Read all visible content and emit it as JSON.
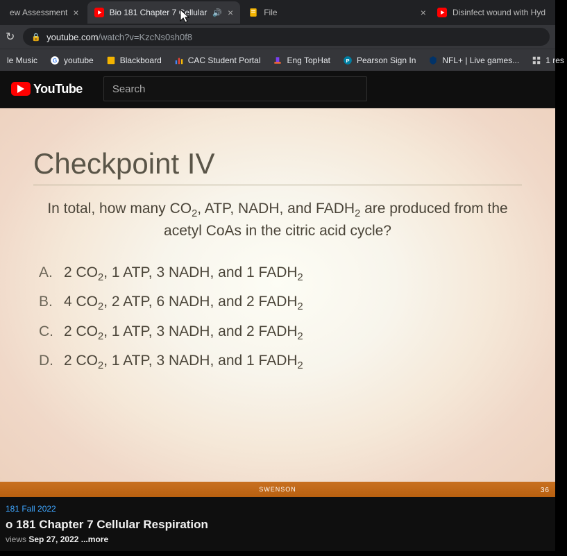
{
  "tabs": [
    {
      "title": "ew Assessment",
      "active": false,
      "icon": null
    },
    {
      "title": "Bio 181 Chapter 7 Cellular",
      "active": true,
      "icon": "youtube",
      "audio": true
    },
    {
      "title": "File",
      "active": false,
      "icon": "docs"
    },
    {
      "title": "Disinfect wound with Hyd",
      "active": false,
      "icon": "youtube",
      "preclose": true
    }
  ],
  "url": {
    "domain": "youtube.com",
    "path": "/watch?v=KzcNs0sh0f8"
  },
  "bookmarks": [
    {
      "label": "le Music",
      "icon": null
    },
    {
      "label": "youtube",
      "icon": "google"
    },
    {
      "label": "Blackboard",
      "icon": "docs-orange"
    },
    {
      "label": "CAC Student Portal",
      "icon": "bars"
    },
    {
      "label": "Eng TopHat",
      "icon": "tophat"
    },
    {
      "label": "Pearson Sign In",
      "icon": "pearson"
    },
    {
      "label": "NFL+ | Live games...",
      "icon": "nfl"
    },
    {
      "label": "1 res",
      "icon": "grid"
    }
  ],
  "yt": {
    "brand": "YouTube",
    "search_placeholder": "Search"
  },
  "slide": {
    "title": "Checkpoint IV",
    "question_html": "In total, how many CO<sub>2</sub>, ATP, NADH, and FADH<sub>2</sub> are produced from the acetyl CoAs in the citric acid cycle?",
    "options": [
      {
        "letter": "A.",
        "html": "2 CO<sub>2</sub>, 1 ATP, 3 NADH, and 1 FADH<sub>2</sub>"
      },
      {
        "letter": "B.",
        "html": "4 CO<sub>2</sub>, 2 ATP, 6 NADH, and 2 FADH<sub>2</sub>"
      },
      {
        "letter": "C.",
        "html": "2 CO<sub>2</sub>, 1 ATP, 3 NADH, and 2 FADH<sub>2</sub>"
      },
      {
        "letter": "D.",
        "html": "2 CO<sub>2</sub>, 1 ATP, 3 NADH, and 1 FADH<sub>2</sub>"
      }
    ],
    "footer": "SWENSON",
    "pagenum": "36"
  },
  "under": {
    "link": "181 Fall 2022",
    "title": "o 181 Chapter 7 Cellular Respiration",
    "views": "views",
    "date": "Sep 27, 2022",
    "more": "...more"
  },
  "colors": {
    "footer_bar": "#c87020",
    "slide_title": "#5a5548"
  }
}
